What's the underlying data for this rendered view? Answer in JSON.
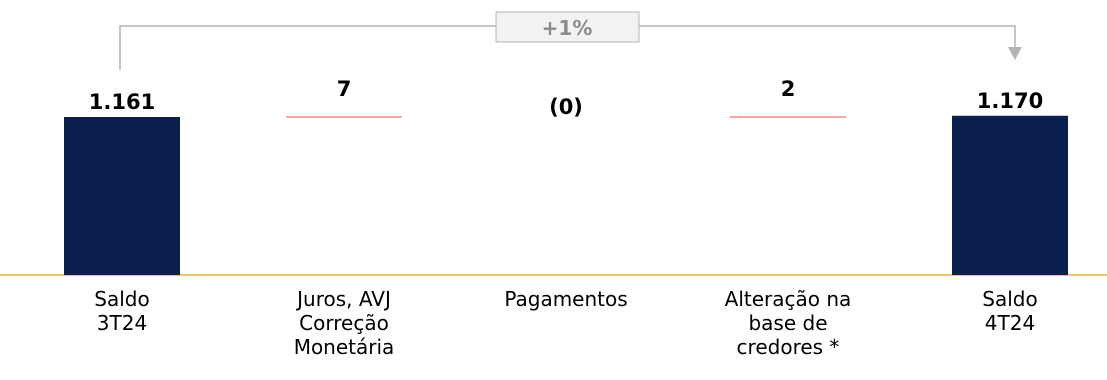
{
  "chart_data": {
    "type": "waterfall",
    "categories": [
      [
        "Saldo",
        "3T24"
      ],
      [
        "Juros, AVJ",
        "Correção",
        "Monetária"
      ],
      [
        "Pagamentos"
      ],
      [
        "Alteração na",
        "base de",
        "credores *"
      ],
      [
        "Saldo",
        "4T24"
      ]
    ],
    "values": [
      1161,
      7,
      0,
      2,
      1170
    ],
    "value_labels": [
      "1.161",
      "7",
      "(0)",
      "2",
      "1.170"
    ],
    "kinds": [
      "total",
      "delta",
      "delta",
      "delta",
      "total"
    ],
    "change_label": "+1%",
    "colors": {
      "total": "#0b1f4e",
      "delta_line": "#f08b8b",
      "axis": "#f0b040",
      "connector": "#b4b4b4",
      "change_text": "#8c8c8c"
    }
  }
}
